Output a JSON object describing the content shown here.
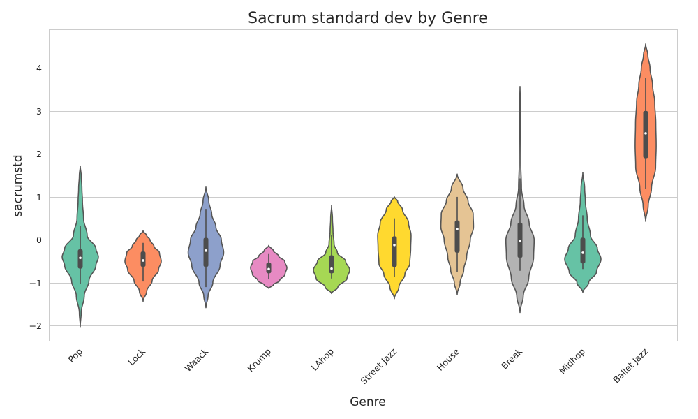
{
  "chart_data": {
    "type": "violin",
    "title": "Sacrum standard dev by Genre",
    "xlabel": "Genre",
    "ylabel": "sacrumstd",
    "ylim": [
      -2.35,
      4.9
    ],
    "yticks": [
      -2,
      -1,
      0,
      1,
      2,
      3,
      4
    ],
    "grid": "horizontal",
    "categories": [
      "Pop",
      "Lock",
      "Waack",
      "Krump",
      "LAhop",
      "Street Jazz",
      "House",
      "Break",
      "Midhop",
      "Ballet Jazz"
    ],
    "colors": [
      "#66c2a5",
      "#fc8d62",
      "#8da0cb",
      "#e78ac3",
      "#a6d854",
      "#ffd92f",
      "#e5c494",
      "#b3b3b3",
      "#66c2a5",
      "#fc8d62"
    ],
    "violins": [
      {
        "name": "Pop",
        "min": -2.02,
        "max": 1.72,
        "q1": -0.67,
        "median": -0.42,
        "q3": -0.22,
        "whisker_low": -1.02,
        "whisker_high": 0.32,
        "profile": [
          [
            -2.02,
            0.0
          ],
          [
            -1.7,
            0.05
          ],
          [
            -1.3,
            0.22
          ],
          [
            -0.95,
            0.48
          ],
          [
            -0.6,
            0.86
          ],
          [
            -0.4,
            1.0
          ],
          [
            -0.2,
            0.86
          ],
          [
            0.1,
            0.38
          ],
          [
            0.5,
            0.18
          ],
          [
            0.9,
            0.12
          ],
          [
            1.2,
            0.09
          ],
          [
            1.5,
            0.05
          ],
          [
            1.72,
            0.0
          ]
        ]
      },
      {
        "name": "Lock",
        "min": -1.43,
        "max": 0.21,
        "q1": -0.63,
        "median": -0.48,
        "q3": -0.27,
        "whisker_low": -0.97,
        "whisker_high": -0.07,
        "profile": [
          [
            -1.43,
            0.0
          ],
          [
            -1.2,
            0.2
          ],
          [
            -0.95,
            0.5
          ],
          [
            -0.7,
            0.85
          ],
          [
            -0.5,
            1.0
          ],
          [
            -0.3,
            0.9
          ],
          [
            -0.15,
            0.6
          ],
          [
            0.0,
            0.38
          ],
          [
            0.1,
            0.2
          ],
          [
            0.21,
            0.0
          ]
        ]
      },
      {
        "name": "Waack",
        "min": -1.58,
        "max": 1.23,
        "q1": -0.63,
        "median": -0.25,
        "q3": 0.05,
        "whisker_low": -1.1,
        "whisker_high": 0.72,
        "profile": [
          [
            -1.58,
            0.0
          ],
          [
            -1.3,
            0.12
          ],
          [
            -1.0,
            0.38
          ],
          [
            -0.6,
            0.78
          ],
          [
            -0.3,
            0.98
          ],
          [
            0.0,
            0.85
          ],
          [
            0.3,
            0.55
          ],
          [
            0.6,
            0.32
          ],
          [
            0.9,
            0.16
          ],
          [
            1.23,
            0.0
          ]
        ]
      },
      {
        "name": "Krump",
        "min": -1.13,
        "max": -0.13,
        "q1": -0.78,
        "median": -0.68,
        "q3": -0.53,
        "whisker_low": -0.92,
        "whisker_high": -0.33,
        "profile": [
          [
            -1.13,
            0.0
          ],
          [
            -1.05,
            0.25
          ],
          [
            -0.95,
            0.6
          ],
          [
            -0.8,
            0.9
          ],
          [
            -0.65,
            1.0
          ],
          [
            -0.5,
            0.88
          ],
          [
            -0.38,
            0.55
          ],
          [
            -0.25,
            0.25
          ],
          [
            -0.13,
            0.0
          ]
        ]
      },
      {
        "name": "LAhop",
        "min": -1.25,
        "max": 0.8,
        "q1": -0.78,
        "median": -0.67,
        "q3": -0.36,
        "whisker_low": -0.9,
        "whisker_high": 0.12,
        "profile": [
          [
            -1.25,
            0.0
          ],
          [
            -1.1,
            0.35
          ],
          [
            -0.9,
            0.85
          ],
          [
            -0.7,
            1.0
          ],
          [
            -0.5,
            0.78
          ],
          [
            -0.3,
            0.32
          ],
          [
            -0.1,
            0.14
          ],
          [
            0.2,
            0.08
          ],
          [
            0.5,
            0.05
          ],
          [
            0.8,
            0.0
          ]
        ]
      },
      {
        "name": "Street Jazz",
        "min": -1.37,
        "max": 1.0,
        "q1": -0.63,
        "median": -0.12,
        "q3": 0.08,
        "whisker_low": -0.87,
        "whisker_high": 0.5,
        "profile": [
          [
            -1.37,
            0.0
          ],
          [
            -1.1,
            0.25
          ],
          [
            -0.8,
            0.58
          ],
          [
            -0.55,
            0.85
          ],
          [
            -0.2,
            0.9
          ],
          [
            0.1,
            0.92
          ],
          [
            0.4,
            0.78
          ],
          [
            0.7,
            0.45
          ],
          [
            0.9,
            0.18
          ],
          [
            1.0,
            0.0
          ]
        ]
      },
      {
        "name": "House",
        "min": -1.27,
        "max": 1.53,
        "q1": -0.3,
        "median": 0.25,
        "q3": 0.45,
        "whisker_low": -0.74,
        "whisker_high": 1.0,
        "profile": [
          [
            -1.27,
            0.0
          ],
          [
            -1.0,
            0.16
          ],
          [
            -0.7,
            0.36
          ],
          [
            -0.4,
            0.52
          ],
          [
            0.0,
            0.72
          ],
          [
            0.3,
            0.9
          ],
          [
            0.6,
            0.88
          ],
          [
            0.9,
            0.6
          ],
          [
            1.2,
            0.32
          ],
          [
            1.53,
            0.0
          ]
        ]
      },
      {
        "name": "Break",
        "min": -1.69,
        "max": 3.57,
        "q1": -0.42,
        "median": -0.03,
        "q3": 0.4,
        "whisker_low": -0.72,
        "whisker_high": 1.43,
        "profile": [
          [
            -1.69,
            0.0
          ],
          [
            -1.3,
            0.18
          ],
          [
            -0.9,
            0.48
          ],
          [
            -0.4,
            0.75
          ],
          [
            0.0,
            0.78
          ],
          [
            0.4,
            0.5
          ],
          [
            0.8,
            0.22
          ],
          [
            1.2,
            0.08
          ],
          [
            1.8,
            0.04
          ],
          [
            2.5,
            0.03
          ],
          [
            3.2,
            0.02
          ],
          [
            3.57,
            0.0
          ]
        ]
      },
      {
        "name": "Midhop",
        "min": -1.22,
        "max": 1.57,
        "q1": -0.55,
        "median": -0.3,
        "q3": 0.05,
        "whisker_low": -0.68,
        "whisker_high": 0.57,
        "profile": [
          [
            -1.22,
            0.0
          ],
          [
            -1.0,
            0.32
          ],
          [
            -0.75,
            0.75
          ],
          [
            -0.45,
            1.0
          ],
          [
            -0.2,
            0.8
          ],
          [
            0.1,
            0.42
          ],
          [
            0.5,
            0.24
          ],
          [
            0.9,
            0.14
          ],
          [
            1.2,
            0.1
          ],
          [
            1.57,
            0.0
          ]
        ]
      },
      {
        "name": "Ballet Jazz",
        "min": 0.43,
        "max": 4.56,
        "q1": 1.9,
        "median": 2.48,
        "q3": 3.0,
        "whisker_low": 1.18,
        "whisker_high": 3.77,
        "profile": [
          [
            0.43,
            0.0
          ],
          [
            0.8,
            0.14
          ],
          [
            1.2,
            0.32
          ],
          [
            1.7,
            0.55
          ],
          [
            2.2,
            0.58
          ],
          [
            2.7,
            0.56
          ],
          [
            3.2,
            0.5
          ],
          [
            3.6,
            0.38
          ],
          [
            4.0,
            0.24
          ],
          [
            4.3,
            0.12
          ],
          [
            4.56,
            0.0
          ]
        ]
      }
    ]
  }
}
